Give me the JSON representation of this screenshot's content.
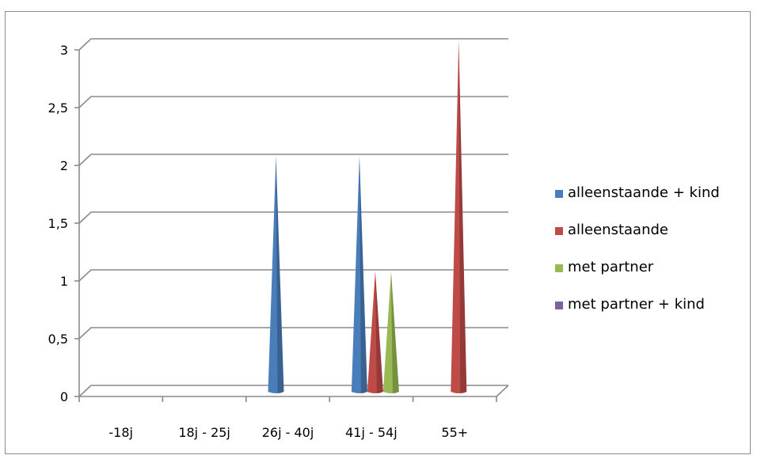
{
  "chart_data": {
    "type": "bar",
    "categories": [
      "-18j",
      "18j - 25j",
      "26j - 40j",
      "41j - 54j",
      "55+"
    ],
    "series": [
      {
        "name": "alleenstaande + kind",
        "color": "#4a7ebb",
        "values": [
          0,
          0,
          2,
          2,
          0
        ]
      },
      {
        "name": "alleenstaande",
        "color": "#be4b48",
        "values": [
          0,
          0,
          0,
          1,
          3
        ]
      },
      {
        "name": "met partner",
        "color": "#98b954",
        "values": [
          0,
          0,
          0,
          1,
          0
        ]
      },
      {
        "name": "met partner + kind",
        "color": "#7d60a0",
        "values": [
          0,
          0,
          0,
          0,
          0
        ]
      }
    ],
    "y_ticks": [
      "0",
      "0,5",
      "1",
      "1,5",
      "2",
      "2,5",
      "3"
    ],
    "ylim": [
      0,
      3
    ],
    "grid": true,
    "legend_position": "right",
    "style": "3d-cone"
  }
}
